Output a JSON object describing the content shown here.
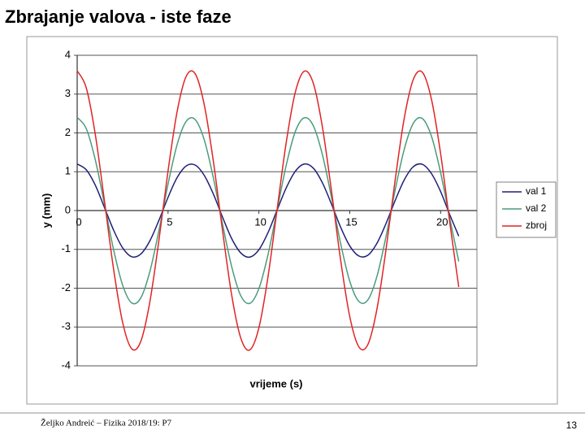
{
  "title": "Zbrajanje valova - iste faze",
  "footer": {
    "left": "Željko Andreić – Fizika 2018/19: P7",
    "page": "13"
  },
  "chart_data": {
    "type": "line",
    "x_label": "vrijeme (s)",
    "y_label": "y (mm)",
    "x": [
      0,
      0.5,
      1,
      1.5,
      2,
      2.5,
      3,
      3.5,
      4,
      4.5,
      5,
      5.5,
      6,
      6.5,
      7,
      7.5,
      8,
      8.5,
      9,
      9.5,
      10,
      10.5,
      11,
      11.5,
      12,
      12.5,
      13,
      13.5,
      14,
      14.5,
      15,
      15.5,
      16,
      16.5,
      17,
      17.5,
      18,
      18.5,
      19,
      19.5,
      20,
      20.5,
      21
    ],
    "series": [
      {
        "name": "val 1",
        "color": "#1f1f7a",
        "values": [
          1.2,
          1.05,
          0.65,
          0.08,
          -0.5,
          -0.96,
          -1.19,
          -1.12,
          -0.78,
          -0.25,
          0.34,
          0.85,
          1.15,
          1.17,
          0.9,
          0.42,
          -0.17,
          -0.72,
          -1.09,
          -1.2,
          -1.01,
          -0.57,
          0.01,
          0.58,
          1.01,
          1.2,
          1.09,
          0.71,
          0.16,
          -0.43,
          -0.91,
          -1.17,
          -1.15,
          -0.84,
          -0.33,
          0.26,
          0.79,
          1.13,
          1.19,
          0.95,
          0.49,
          -0.1,
          -0.66
        ]
      },
      {
        "name": "val 2",
        "color": "#4a9c7c",
        "values": [
          2.4,
          2.11,
          1.3,
          0.17,
          -1.0,
          -1.92,
          -2.38,
          -2.25,
          -1.57,
          -0.51,
          0.68,
          1.7,
          2.3,
          2.34,
          1.81,
          0.83,
          -0.35,
          -1.44,
          -2.19,
          -2.39,
          -2.01,
          -1.14,
          0.01,
          1.16,
          2.03,
          2.39,
          2.18,
          1.43,
          0.33,
          -0.85,
          -1.82,
          -2.34,
          -2.3,
          -1.69,
          -0.66,
          0.53,
          1.58,
          2.25,
          2.37,
          1.91,
          0.98,
          -0.19,
          -1.31
        ]
      },
      {
        "name": "zbroj",
        "color": "#e02424",
        "values": [
          3.6,
          3.16,
          1.95,
          0.25,
          -1.5,
          -2.88,
          -3.56,
          -3.37,
          -2.35,
          -0.76,
          1.02,
          2.55,
          3.46,
          3.52,
          2.71,
          1.25,
          -0.52,
          -2.17,
          -3.28,
          -3.59,
          -3.02,
          -1.71,
          0.02,
          1.74,
          3.04,
          3.59,
          3.27,
          2.14,
          0.49,
          -1.28,
          -2.73,
          -3.51,
          -3.45,
          -2.53,
          -0.99,
          0.79,
          2.38,
          3.38,
          3.56,
          2.86,
          1.47,
          -0.29,
          -1.97
        ]
      }
    ],
    "xlim": [
      0,
      22
    ],
    "xticks": [
      0,
      5,
      10,
      15,
      20
    ],
    "ylim": [
      -4,
      4
    ],
    "yticks": [
      -4,
      -3,
      -2,
      -1,
      0,
      1,
      2,
      3,
      4
    ],
    "grid": true,
    "legend": "right"
  }
}
